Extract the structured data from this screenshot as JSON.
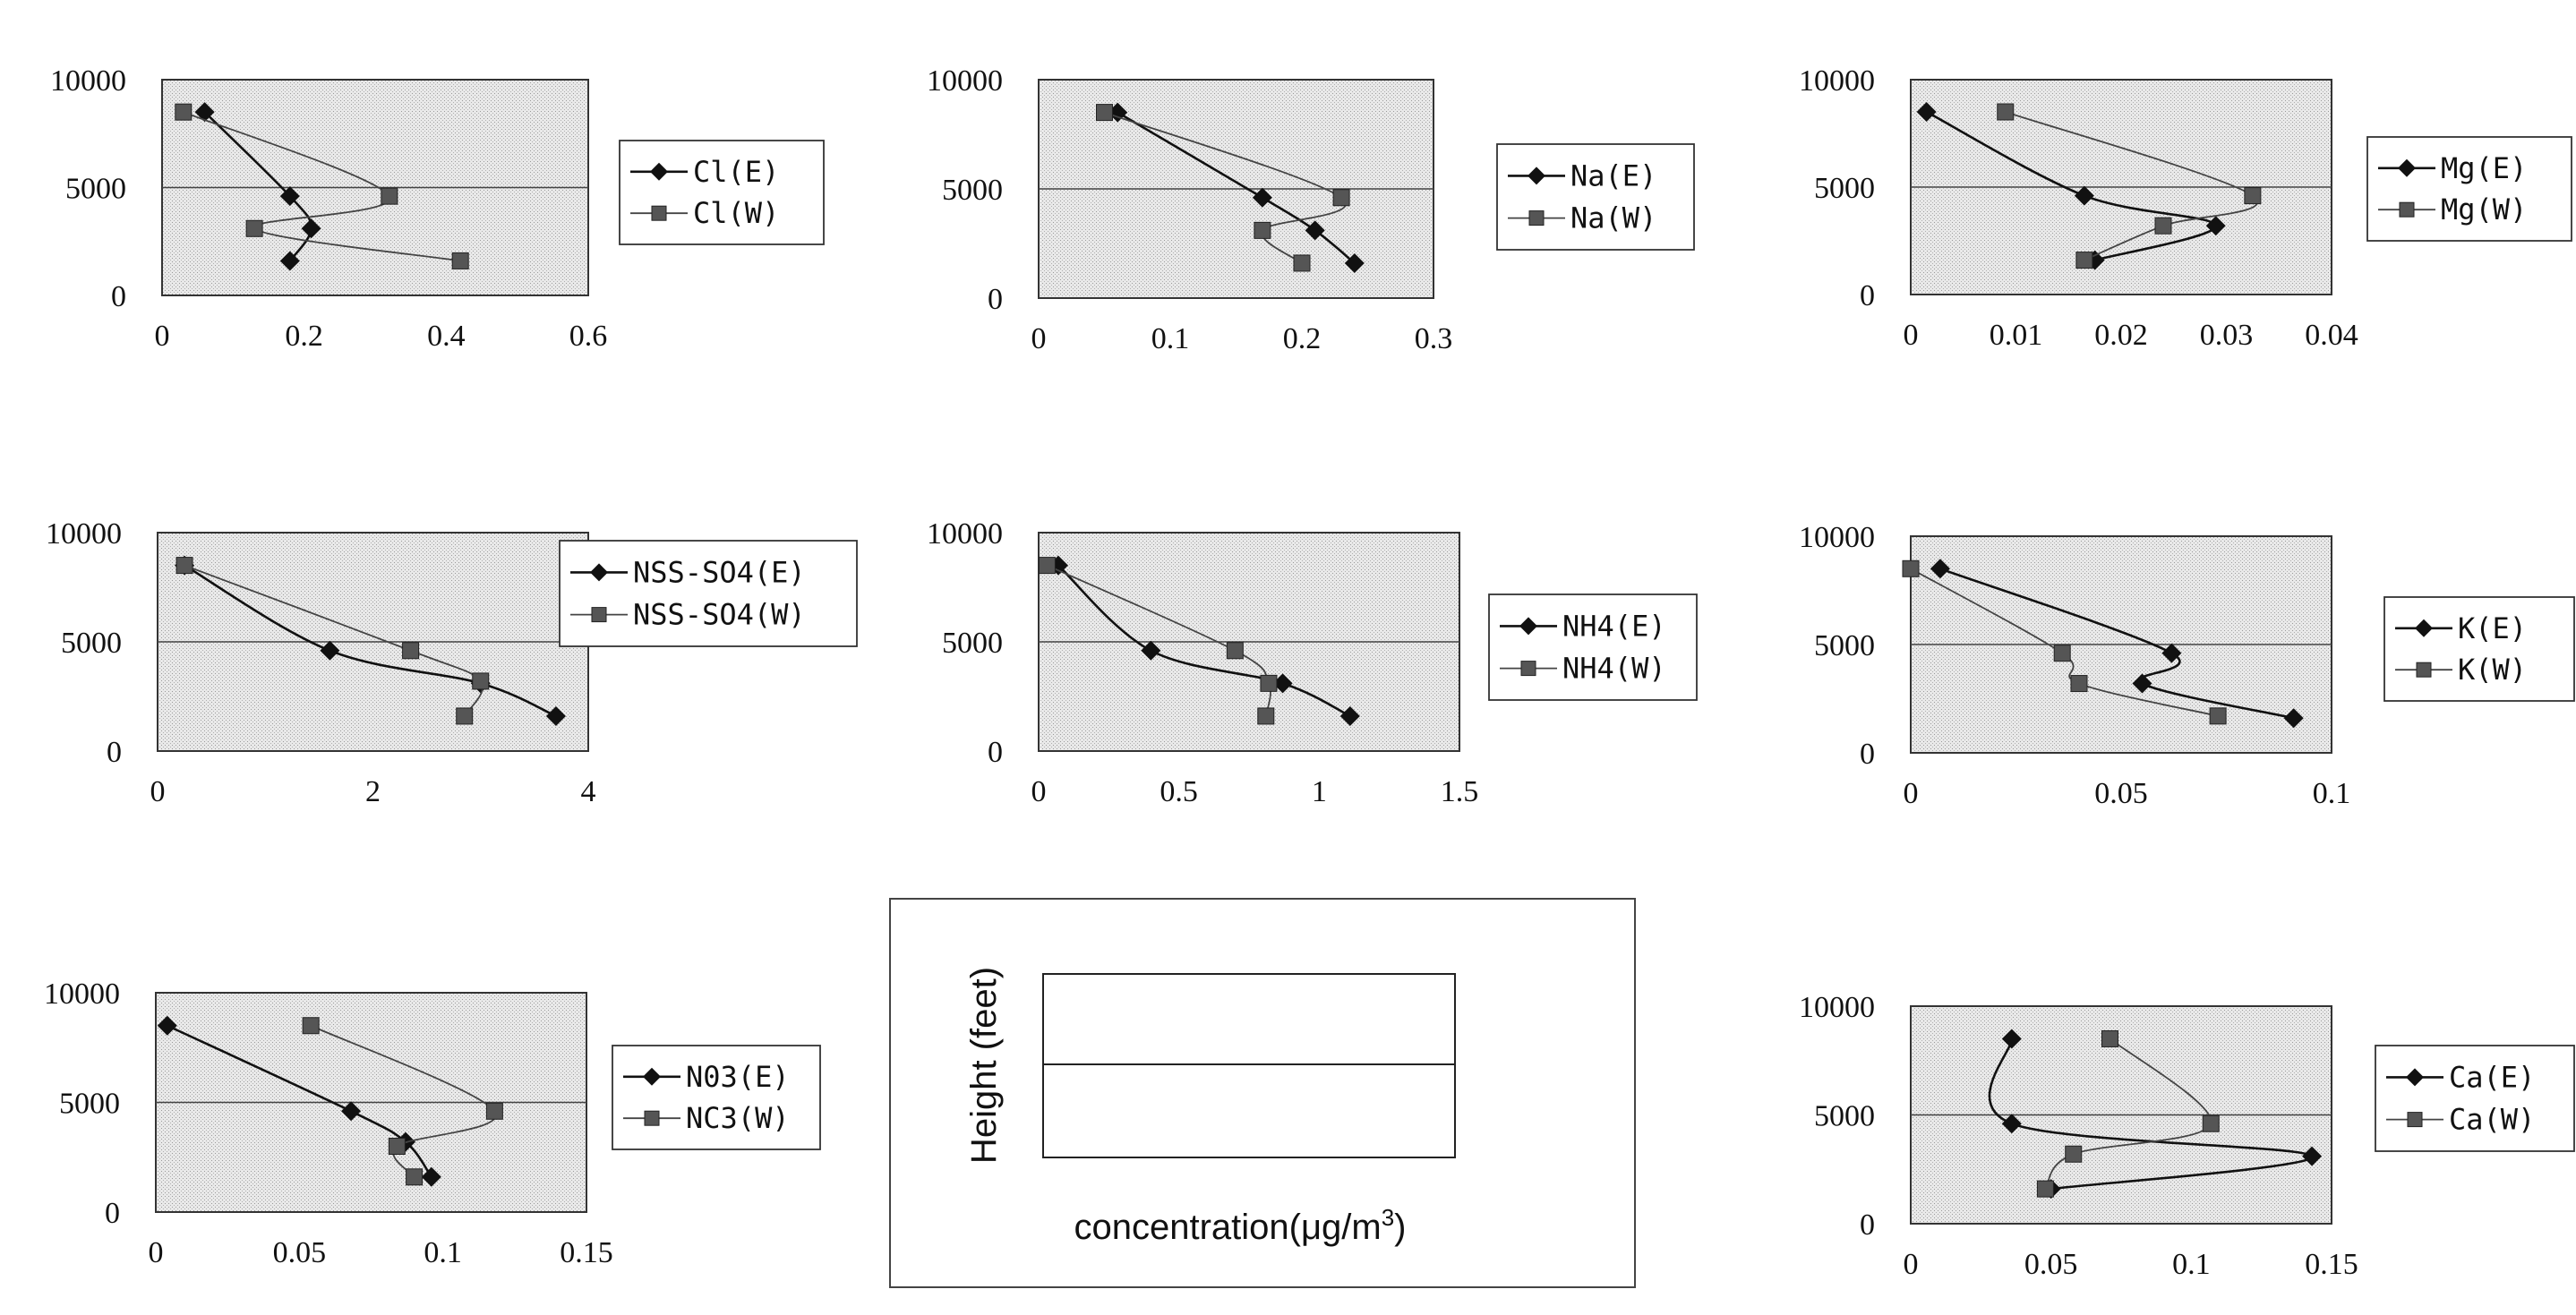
{
  "chart_data": [
    {
      "type": "line",
      "xlim": [
        0,
        0.6
      ],
      "xticks": [
        "0",
        "0.2",
        "0.4",
        "0.6"
      ],
      "ylim": [
        0,
        10000
      ],
      "yticks": [
        "0",
        "5000",
        "10000"
      ],
      "series": [
        {
          "name": "Cl(E)",
          "color": "#111111",
          "marker": "diamond",
          "points": [
            [
              0.06,
              8500
            ],
            [
              0.18,
              4600
            ],
            [
              0.21,
              3100
            ],
            [
              0.18,
              1600
            ]
          ]
        },
        {
          "name": "Cl(W)",
          "color": "#444444",
          "marker": "square",
          "points": [
            [
              0.03,
              8500
            ],
            [
              0.32,
              4600
            ],
            [
              0.13,
              3100
            ],
            [
              0.42,
              1600
            ]
          ]
        }
      ]
    },
    {
      "type": "line",
      "xlim": [
        0,
        0.3
      ],
      "xticks": [
        "0",
        "0.1",
        "0.2",
        "0.3"
      ],
      "ylim": [
        0,
        10000
      ],
      "yticks": [
        "0",
        "5000",
        "10000"
      ],
      "series": [
        {
          "name": "Na(E)",
          "color": "#111111",
          "marker": "diamond",
          "points": [
            [
              0.06,
              8500
            ],
            [
              0.17,
              4600
            ],
            [
              0.21,
              3100
            ],
            [
              0.24,
              1600
            ]
          ]
        },
        {
          "name": "Na(W)",
          "color": "#444444",
          "marker": "square",
          "points": [
            [
              0.05,
              8500
            ],
            [
              0.23,
              4600
            ],
            [
              0.17,
              3100
            ],
            [
              0.2,
              1600
            ]
          ]
        }
      ]
    },
    {
      "type": "line",
      "xlim": [
        0,
        0.04
      ],
      "xticks": [
        "0",
        "0.01",
        "0.02",
        "0.03",
        "0.04"
      ],
      "ylim": [
        0,
        10000
      ],
      "yticks": [
        "0",
        "5000",
        "10000"
      ],
      "series": [
        {
          "name": "Mg(E)",
          "color": "#111111",
          "marker": "diamond",
          "points": [
            [
              0.0015,
              8500
            ],
            [
              0.0165,
              4600
            ],
            [
              0.029,
              3200
            ],
            [
              0.0175,
              1600
            ]
          ]
        },
        {
          "name": "Mg(W)",
          "color": "#444444",
          "marker": "square",
          "points": [
            [
              0.009,
              8500
            ],
            [
              0.0325,
              4600
            ],
            [
              0.024,
              3200
            ],
            [
              0.0165,
              1600
            ]
          ]
        }
      ]
    },
    {
      "type": "line",
      "xlim": [
        0,
        4
      ],
      "xticks": [
        "0",
        "2",
        "4"
      ],
      "ylim": [
        0,
        10000
      ],
      "yticks": [
        "0",
        "5000",
        "10000"
      ],
      "series": [
        {
          "name": "NSS-SO4(E)",
          "color": "#111111",
          "marker": "diamond",
          "points": [
            [
              0.25,
              8500
            ],
            [
              1.6,
              4600
            ],
            [
              3.0,
              3100
            ],
            [
              3.7,
              1600
            ]
          ]
        },
        {
          "name": "NSS-SO4(W)",
          "color": "#444444",
          "marker": "square",
          "points": [
            [
              0.25,
              8500
            ],
            [
              2.35,
              4600
            ],
            [
              3.0,
              3200
            ],
            [
              2.85,
              1600
            ]
          ]
        }
      ]
    },
    {
      "type": "line",
      "xlim": [
        0,
        1.5
      ],
      "xticks": [
        "0",
        "0.5",
        "1",
        "1.5"
      ],
      "ylim": [
        0,
        10000
      ],
      "yticks": [
        "0",
        "5000",
        "10000"
      ],
      "series": [
        {
          "name": "NH4(E)",
          "color": "#111111",
          "marker": "diamond",
          "points": [
            [
              0.07,
              8500
            ],
            [
              0.4,
              4600
            ],
            [
              0.87,
              3100
            ],
            [
              1.11,
              1600
            ]
          ]
        },
        {
          "name": "NH4(W)",
          "color": "#444444",
          "marker": "square",
          "points": [
            [
              0.03,
              8500
            ],
            [
              0.7,
              4600
            ],
            [
              0.82,
              3100
            ],
            [
              0.81,
              1600
            ]
          ]
        }
      ]
    },
    {
      "type": "line",
      "xlim": [
        0,
        0.1
      ],
      "xticks": [
        "0",
        "0.05",
        "0.1"
      ],
      "ylim": [
        0,
        10000
      ],
      "yticks": [
        "0",
        "5000",
        "10000"
      ],
      "series": [
        {
          "name": "K(E)",
          "color": "#111111",
          "marker": "diamond",
          "points": [
            [
              0.007,
              8500
            ],
            [
              0.062,
              4600
            ],
            [
              0.055,
              3200
            ],
            [
              0.091,
              1600
            ]
          ]
        },
        {
          "name": "K(W)",
          "color": "#444444",
          "marker": "square",
          "points": [
            [
              0.0,
              8500
            ],
            [
              0.036,
              4600
            ],
            [
              0.04,
              3200
            ],
            [
              0.073,
              1700
            ]
          ]
        }
      ]
    },
    {
      "type": "line",
      "xlim": [
        0,
        0.15
      ],
      "xticks": [
        "0",
        "0.05",
        "0.1",
        "0.15"
      ],
      "ylim": [
        0,
        10000
      ],
      "yticks": [
        "0",
        "5000",
        "10000"
      ],
      "series": [
        {
          "name": "N03(E)",
          "color": "#111111",
          "marker": "diamond",
          "points": [
            [
              0.004,
              8500
            ],
            [
              0.068,
              4600
            ],
            [
              0.087,
              3200
            ],
            [
              0.096,
              1600
            ]
          ]
        },
        {
          "name": "NC3(W)",
          "color": "#444444",
          "marker": "square",
          "points": [
            [
              0.054,
              8500
            ],
            [
              0.118,
              4600
            ],
            [
              0.084,
              3000
            ],
            [
              0.09,
              1600
            ]
          ]
        }
      ]
    },
    {
      "type": "line",
      "xlim": [
        0,
        0.15
      ],
      "xticks": [
        "0",
        "0.05",
        "0.1",
        "0.15"
      ],
      "ylim": [
        0,
        10000
      ],
      "yticks": [
        "0",
        "5000",
        "10000"
      ],
      "series": [
        {
          "name": "Ca(E)",
          "color": "#111111",
          "marker": "diamond",
          "points": [
            [
              0.036,
              8500
            ],
            [
              0.036,
              4600
            ],
            [
              0.143,
              3100
            ],
            [
              0.05,
              1600
            ]
          ]
        },
        {
          "name": "Ca(W)",
          "color": "#444444",
          "marker": "square",
          "points": [
            [
              0.071,
              8500
            ],
            [
              0.107,
              4600
            ],
            [
              0.058,
              3200
            ],
            [
              0.048,
              1600
            ]
          ]
        }
      ]
    }
  ],
  "key": {
    "ylabel": "Height (feet)",
    "xlabel": "concentration(μg/m",
    "xlabel_sup": "3",
    "xlabel_end": ")"
  }
}
